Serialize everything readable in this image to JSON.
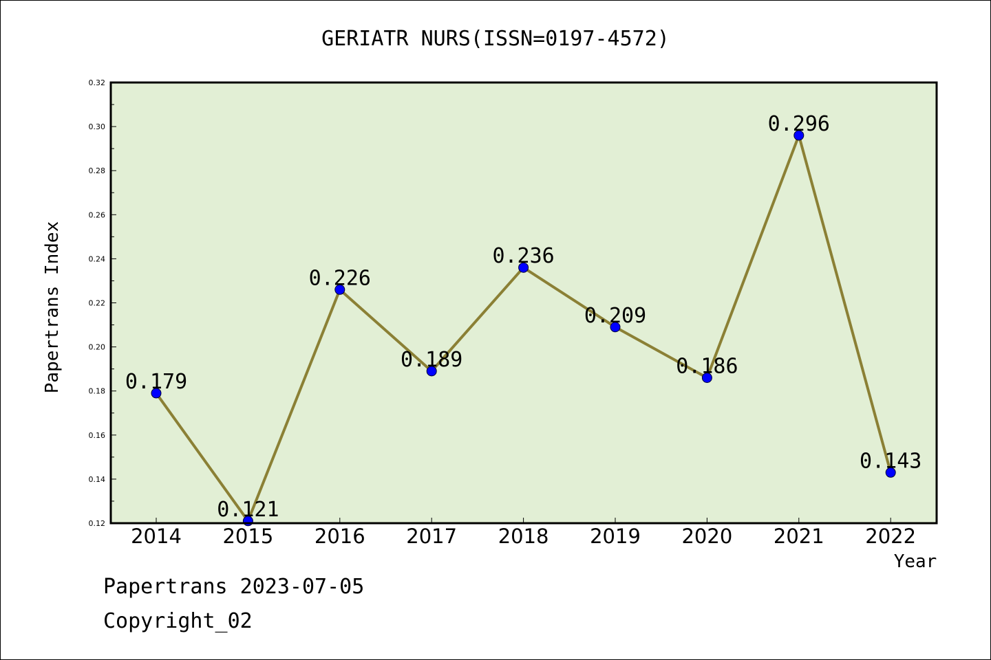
{
  "chart_data": {
    "type": "line",
    "title": "GERIATR NURS(ISSN=0197-4572)",
    "xlabel": "Year",
    "ylabel": "Papertrans Index",
    "x": [
      "2014",
      "2015",
      "2016",
      "2017",
      "2018",
      "2019",
      "2020",
      "2021",
      "2022"
    ],
    "series": [
      {
        "values": [
          0.179,
          0.121,
          0.226,
          0.189,
          0.236,
          0.209,
          0.186,
          0.296,
          0.143
        ],
        "data_labels": [
          "0.179",
          "0.121",
          "0.226",
          "0.189",
          "0.236",
          "0.209",
          "0.186",
          "0.296",
          "0.143"
        ]
      }
    ],
    "ylim": [
      0.12,
      0.32
    ],
    "yticks": [
      "0.12",
      "0.14",
      "0.16",
      "0.18",
      "0.20",
      "0.22",
      "0.24",
      "0.26",
      "0.28",
      "0.30",
      "0.32"
    ],
    "grid": false,
    "colors": {
      "plot_background": "#e2efd5",
      "line": "#8b8035",
      "marker": "#0000ff"
    }
  },
  "footer": {
    "date_line": "Papertrans 2023-07-05",
    "copyright": "Copyright_02"
  }
}
